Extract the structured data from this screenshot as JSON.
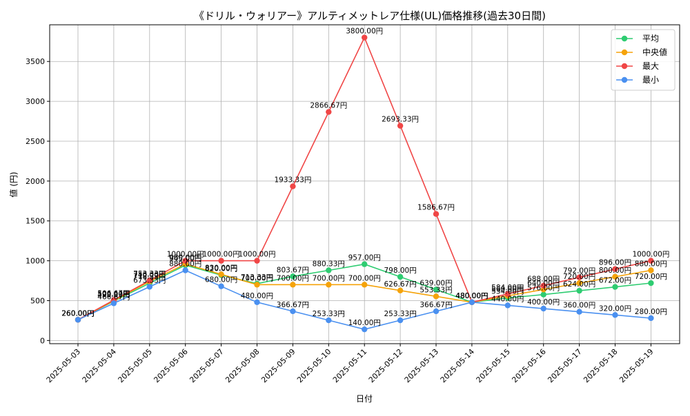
{
  "chart_data": {
    "type": "line",
    "title": "《ドリル・ウォリアー》アルティメットレア仕様(UL)価格推移(過去30日間)",
    "xlabel": "日付",
    "ylabel": "値 (円)",
    "ylim": [
      -40,
      3960
    ],
    "yticks": [
      0,
      500,
      1000,
      1500,
      2000,
      2500,
      3000,
      3500
    ],
    "grid": true,
    "legend_position": "top-right",
    "categories": [
      "2025-05-03",
      "2025-05-04",
      "2025-05-05",
      "2025-05-06",
      "2025-05-07",
      "2025-05-08",
      "2025-05-09",
      "2025-05-10",
      "2025-05-11",
      "2025-05-12",
      "2025-05-13",
      "2025-05-14",
      "2025-05-15",
      "2025-05-16",
      "2025-05-17",
      "2025-05-18",
      "2025-05-19"
    ],
    "series": [
      {
        "name": "平均",
        "color": "#2ecc71",
        "values": [
          260,
          493.33,
          718.33,
          945,
          820,
          713.33,
          803.67,
          880.33,
          957,
          798,
          639,
          480,
          534,
          576,
          624,
          672,
          720
        ],
        "labels": [
          "260.00円",
          "493.33円",
          "718.33円",
          "945.00円",
          "820.00円",
          "713.33円",
          "803.67円",
          "880.33円",
          "957.00円",
          "798.00円",
          "639.00円",
          "480.00円",
          "534.00円",
          "576.00円",
          "624.00円",
          "672.00円",
          "720.00円"
        ]
      },
      {
        "name": "中央値",
        "color": "#f5a30a",
        "values": [
          260,
          500,
          740,
          960,
          830,
          700,
          700,
          700,
          700,
          626.67,
          553.33,
          480,
          560,
          640,
          720,
          800,
          880
        ],
        "labels": [
          "260.00円",
          "500.00円",
          "740.00円",
          "960.00円",
          "830.00円",
          "700.00円",
          "700.00円",
          "700.00円",
          "700.00円",
          "626.67円",
          "553.33円",
          "480.00円",
          "560.00円",
          "640.00円",
          "720.00円",
          "800.00円",
          "880.00円"
        ]
      },
      {
        "name": "最大",
        "color": "#f04646",
        "values": [
          260,
          506.67,
          753.33,
          1000,
          1000,
          1000,
          1933.33,
          2866.67,
          3800,
          2693.33,
          1586.67,
          480,
          584,
          688,
          792,
          896,
          1000
        ],
        "labels": [
          "260.00円",
          "506.67円",
          "753.33円",
          "1000.00円",
          "1000.00円",
          "1000.00円",
          "1933.33円",
          "2866.67円",
          "3800.00円",
          "2693.33円",
          "1586.67円",
          "480.00円",
          "584.00円",
          "688.00円",
          "792.00円",
          "896.00円",
          "1000.00円"
        ]
      },
      {
        "name": "最小",
        "color": "#4a90f0",
        "values": [
          260,
          466.67,
          673.33,
          880,
          680,
          480,
          366.67,
          253.33,
          140,
          253.33,
          366.67,
          480,
          440,
          400,
          360,
          320,
          280
        ],
        "labels": [
          "260.00円",
          "466.67円",
          "673.33円",
          "880.00円",
          "680.00円",
          "480.00円",
          "366.67円",
          "253.33円",
          "140.00円",
          "253.33円",
          "366.67円",
          "480.00円",
          "440.00円",
          "400.00円",
          "360.00円",
          "320.00円",
          "280.00円"
        ]
      }
    ]
  }
}
